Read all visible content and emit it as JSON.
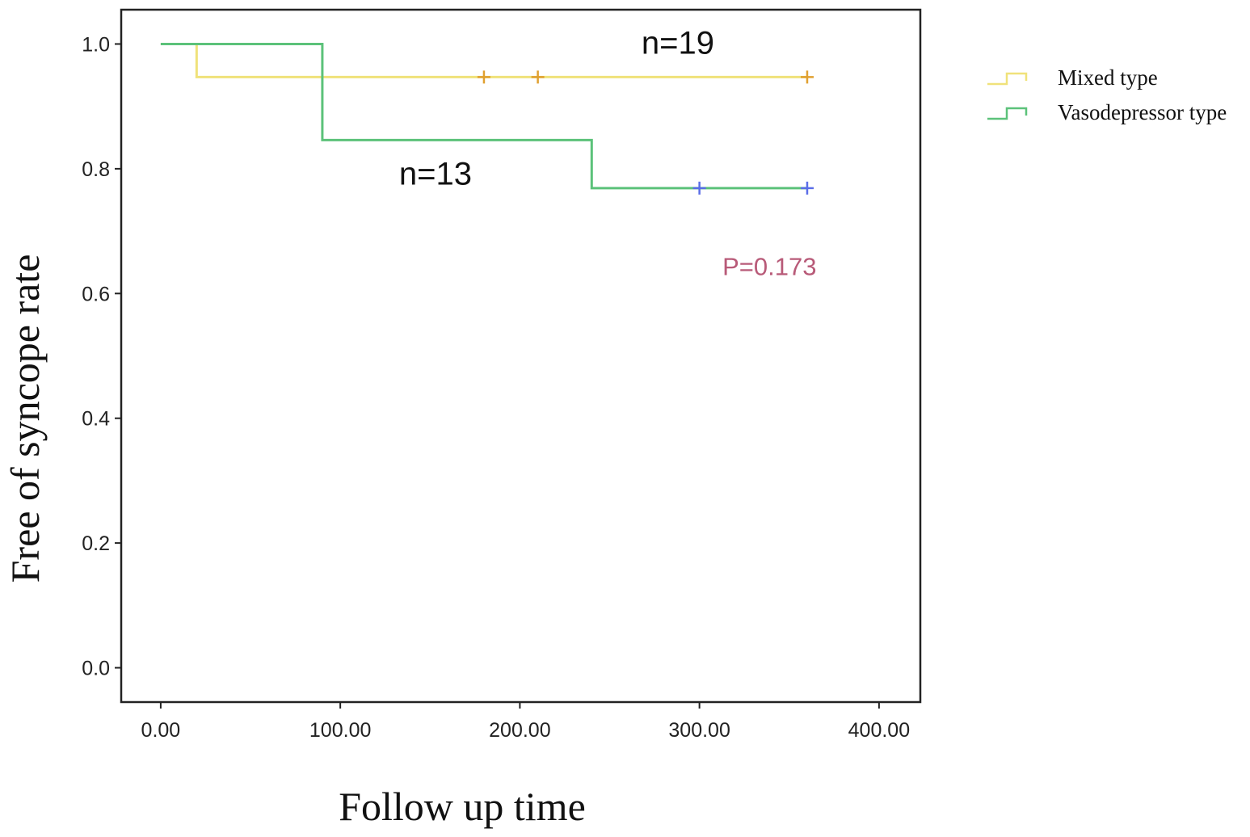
{
  "chart_data": {
    "type": "line",
    "step": true,
    "title": "",
    "xlabel": "Follow up time",
    "ylabel": "Free of syncope rate",
    "xlim": [
      -22,
      423
    ],
    "ylim": [
      -0.055,
      1.055
    ],
    "x_ticks": [
      0,
      100,
      200,
      300,
      400
    ],
    "x_tick_labels": [
      "0.00",
      "100.00",
      "200.00",
      "300.00",
      "400.00"
    ],
    "y_ticks": [
      0.0,
      0.2,
      0.4,
      0.6,
      0.8,
      1.0
    ],
    "y_tick_labels": [
      "0.0",
      "0.2",
      "0.4",
      "0.6",
      "0.8",
      "1.0"
    ],
    "grid": false,
    "legend_position": "right, outside plot",
    "series": [
      {
        "name": "Mixed type",
        "color": "#f0e27a",
        "censor_color": "#e0a030",
        "steps": [
          {
            "x": 0,
            "y": 1.0
          },
          {
            "x": 20,
            "y": 0.947
          },
          {
            "x": 360,
            "y": 0.947
          }
        ],
        "censored": [
          {
            "x": 180,
            "y": 0.947
          },
          {
            "x": 210,
            "y": 0.947
          },
          {
            "x": 360,
            "y": 0.947
          }
        ]
      },
      {
        "name": "Vasodepressor type",
        "color": "#5cc27a",
        "censor_color": "#5b6ee8",
        "steps": [
          {
            "x": 0,
            "y": 1.0
          },
          {
            "x": 90,
            "y": 0.846
          },
          {
            "x": 240,
            "y": 0.769
          },
          {
            "x": 360,
            "y": 0.769
          }
        ],
        "censored": [
          {
            "x": 300,
            "y": 0.769
          },
          {
            "x": 360,
            "y": 0.769
          }
        ]
      }
    ],
    "annotations": [
      {
        "text": "n=19",
        "x": 288,
        "y": 1.0,
        "kind": "n"
      },
      {
        "text": "n=13",
        "x": 153,
        "y": 0.79,
        "kind": "n"
      },
      {
        "text": "P=0.173",
        "x": 339,
        "y": 0.645,
        "kind": "p",
        "color": "#b85a78"
      }
    ]
  }
}
